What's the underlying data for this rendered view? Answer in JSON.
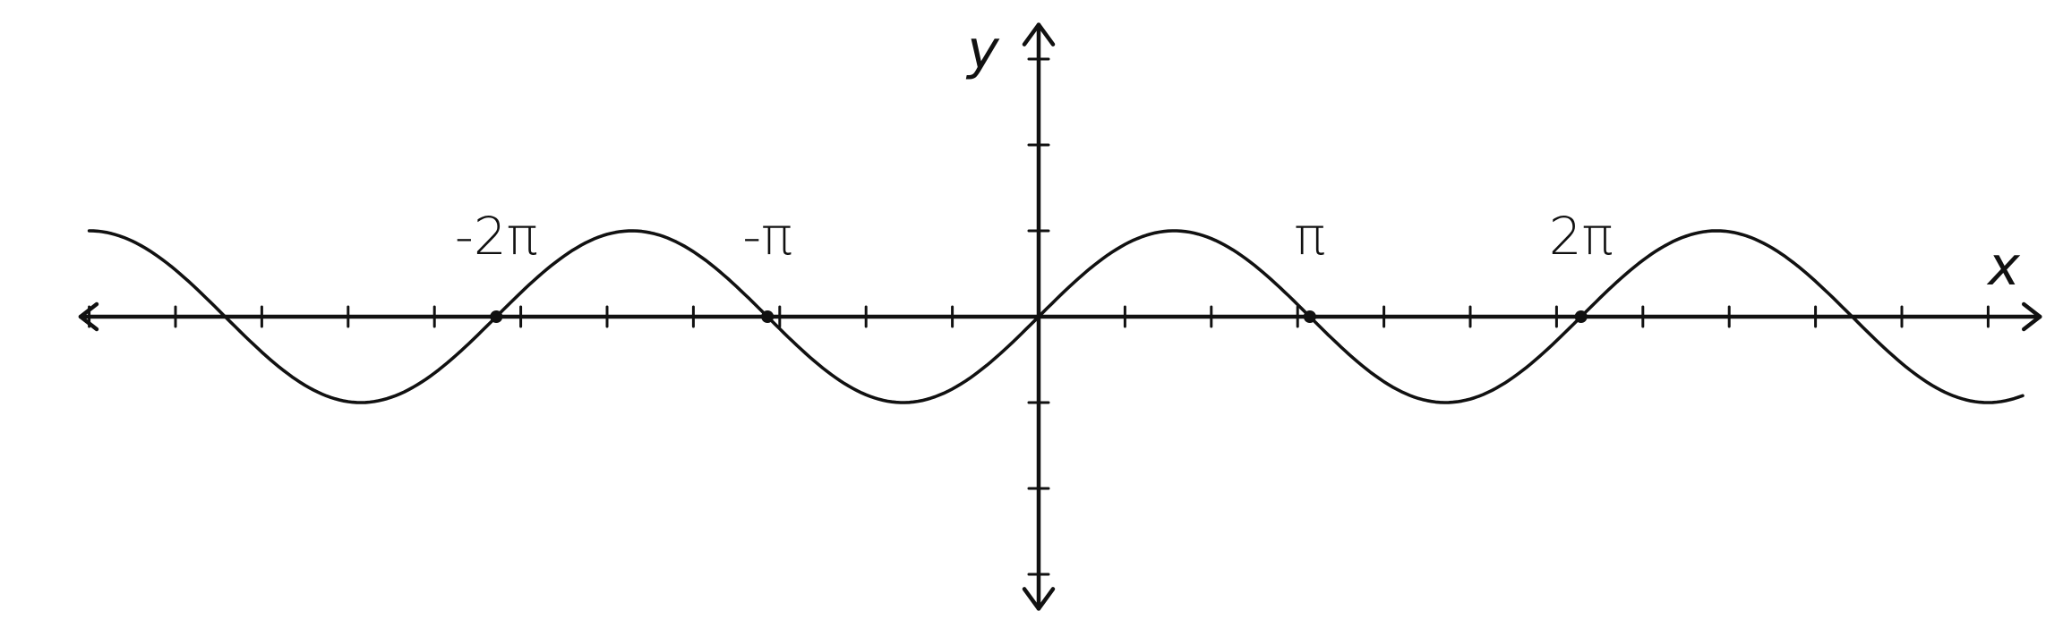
{
  "chart_data": {
    "type": "line",
    "title": "",
    "xlabel": "x",
    "ylabel": "y",
    "x_tick_labels": [
      {
        "value": -6.2832,
        "label": "-2π"
      },
      {
        "value": -3.1416,
        "label": "-π"
      },
      {
        "value": 3.1416,
        "label": "π"
      },
      {
        "value": 6.2832,
        "label": "2π"
      }
    ],
    "xlim": [
      -11.1,
      11.6
    ],
    "ylim": [
      -3.4,
      3.4
    ],
    "x_tick_step": 1,
    "y_tick_step": 1,
    "series": [
      {
        "function": "sin(x)",
        "x_start": -11.0,
        "x_end": 11.4,
        "step": 0.05
      }
    ],
    "highlighted_points": [
      {
        "x": -6.2832,
        "y": 0
      },
      {
        "x": -3.1416,
        "y": 0
      },
      {
        "x": 3.1416,
        "y": 0
      },
      {
        "x": 6.2832,
        "y": 0
      }
    ],
    "grid": false,
    "legend": "none"
  }
}
